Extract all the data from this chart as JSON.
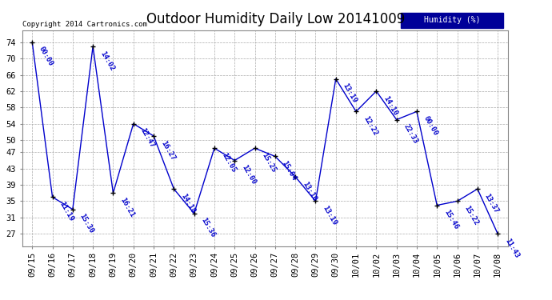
{
  "title": "Outdoor Humidity Daily Low 20141009",
  "copyright": "Copyright 2014 Cartronics.com",
  "legend_label": "Humidity (%)",
  "x_labels": [
    "09/15",
    "09/16",
    "09/17",
    "09/18",
    "09/19",
    "09/20",
    "09/21",
    "09/22",
    "09/23",
    "09/24",
    "09/25",
    "09/26",
    "09/27",
    "09/28",
    "09/29",
    "09/30",
    "10/01",
    "10/02",
    "10/03",
    "10/04",
    "10/05",
    "10/06",
    "10/07",
    "10/08"
  ],
  "y_values": [
    74,
    36,
    33,
    73,
    37,
    54,
    51,
    38,
    32,
    48,
    45,
    48,
    46,
    41,
    35,
    65,
    57,
    62,
    55,
    57,
    34,
    35,
    38,
    27
  ],
  "time_labels": [
    "00:00",
    "11:19",
    "15:30",
    "14:02",
    "16:21",
    "12:47",
    "16:27",
    "14:18",
    "15:36",
    "12:05",
    "12:00",
    "15:25",
    "15:04",
    "13:10",
    "13:19",
    "13:19",
    "12:22",
    "14:10",
    "22:33",
    "00:00",
    "15:46",
    "15:22",
    "13:37",
    "11:43"
  ],
  "line_color": "#0000cc",
  "marker_color": "#000000",
  "background_color": "#ffffff",
  "grid_color": "#aaaaaa",
  "ylim_min": 24,
  "ylim_max": 77,
  "yticks": [
    27,
    31,
    35,
    39,
    43,
    47,
    50,
    54,
    58,
    62,
    66,
    70,
    74
  ],
  "label_color": "#0000cc",
  "legend_bg": "#000099",
  "legend_text_color": "#ffffff",
  "title_fontsize": 12,
  "tick_fontsize": 7.5,
  "label_fontsize": 6.5,
  "copyright_fontsize": 6.5
}
